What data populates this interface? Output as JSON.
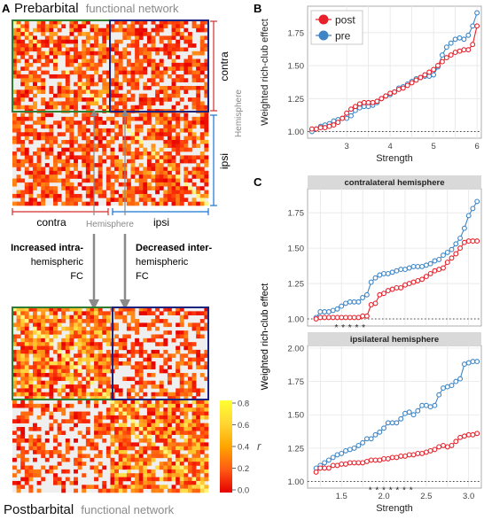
{
  "panel_a": {
    "letter": "A",
    "title_top_bold": "Prebarbital",
    "title_top_light": "functional network",
    "title_bottom_bold": "Postbarbital",
    "title_bottom_light": "functional network",
    "contra_label": "contra",
    "ipsi_label": "ipsi",
    "hemisphere_label": "Hemisphere",
    "left_arrow_text": [
      "Increased intra-",
      "hemispheric",
      "FC"
    ],
    "right_arrow_text": [
      "Decreased inter-",
      "hemispheric",
      "FC"
    ],
    "colorbar": {
      "label": "r",
      "ticks": [
        "0.8",
        "0.6",
        "0.4",
        "0.2",
        "0.0"
      ],
      "colors": [
        "#ffff33",
        "#ffd633",
        "#ffa500",
        "#ff6a1a",
        "#ff2a00",
        "#e60000"
      ]
    },
    "matrix_colors": {
      "low": "#e60000",
      "mid": "#ff8c1a",
      "high": "#ffff66",
      "empty": "#eeeeee",
      "intra_box": "#2e7d32",
      "inter_box": "#1a237e"
    }
  },
  "chart_data": [
    {
      "panel": "B",
      "type": "line",
      "title": "",
      "xlabel": "Strength",
      "ylabel": "Weighted rich-club effect",
      "xlim": [
        2.1,
        6.1
      ],
      "ylim": [
        0.95,
        1.95
      ],
      "xticks": [
        "3",
        "4",
        "5",
        "6"
      ],
      "yticks": [
        "1.00",
        "1.25",
        "1.50",
        "1.75"
      ],
      "reference_line": 1.0,
      "legend_position": "top-left",
      "series": [
        {
          "name": "post",
          "color": "#e8202a",
          "x": [
            2.2,
            2.3,
            2.4,
            2.5,
            2.6,
            2.7,
            2.8,
            2.9,
            3.0,
            3.1,
            3.2,
            3.3,
            3.4,
            3.5,
            3.6,
            3.7,
            3.8,
            3.9,
            4.0,
            4.1,
            4.2,
            4.3,
            4.4,
            4.5,
            4.6,
            4.7,
            4.8,
            4.9,
            5.0,
            5.1,
            5.2,
            5.3,
            5.4,
            5.5,
            5.6,
            5.7,
            5.8,
            5.9,
            6.0
          ],
          "y": [
            1.02,
            1.02,
            1.03,
            1.03,
            1.04,
            1.05,
            1.07,
            1.1,
            1.14,
            1.17,
            1.19,
            1.21,
            1.22,
            1.22,
            1.22,
            1.23,
            1.25,
            1.27,
            1.29,
            1.3,
            1.32,
            1.33,
            1.35,
            1.37,
            1.39,
            1.41,
            1.43,
            1.45,
            1.47,
            1.5,
            1.53,
            1.56,
            1.58,
            1.6,
            1.61,
            1.62,
            1.62,
            1.66,
            1.8
          ]
        },
        {
          "name": "pre",
          "color": "#3d85c6",
          "x": [
            2.2,
            2.3,
            2.4,
            2.5,
            2.6,
            2.7,
            2.8,
            2.9,
            3.0,
            3.1,
            3.2,
            3.3,
            3.4,
            3.5,
            3.6,
            3.7,
            3.8,
            3.9,
            4.0,
            4.1,
            4.2,
            4.3,
            4.4,
            4.5,
            4.6,
            4.7,
            4.8,
            4.9,
            5.0,
            5.1,
            5.2,
            5.3,
            5.4,
            5.5,
            5.6,
            5.7,
            5.8,
            5.9,
            6.0
          ],
          "y": [
            1.0,
            1.02,
            1.04,
            1.05,
            1.06,
            1.08,
            1.09,
            1.1,
            1.1,
            1.12,
            1.16,
            1.18,
            1.19,
            1.19,
            1.2,
            1.22,
            1.25,
            1.27,
            1.28,
            1.3,
            1.33,
            1.34,
            1.36,
            1.38,
            1.4,
            1.41,
            1.42,
            1.42,
            1.43,
            1.49,
            1.58,
            1.64,
            1.67,
            1.7,
            1.71,
            1.7,
            1.73,
            1.8,
            1.9
          ]
        }
      ]
    },
    {
      "panel": "C",
      "type": "line",
      "title": "contralateral hemisphere",
      "xlabel": "",
      "ylabel": "Weighted rich-club effect",
      "xlim": [
        1.1,
        3.15
      ],
      "ylim": [
        0.95,
        1.92
      ],
      "xticks": [],
      "yticks": [
        "1.00",
        "1.25",
        "1.50",
        "1.75"
      ],
      "reference_line": 1.0,
      "significance_marks": "* * * * *",
      "sig_x": [
        1.45,
        1.48,
        1.52,
        1.56,
        1.6
      ],
      "series": [
        {
          "name": "post",
          "color": "#e8202a",
          "x": [
            1.2,
            1.25,
            1.3,
            1.35,
            1.4,
            1.45,
            1.5,
            1.55,
            1.6,
            1.65,
            1.7,
            1.75,
            1.8,
            1.85,
            1.9,
            1.95,
            2.0,
            2.05,
            2.1,
            2.15,
            2.2,
            2.25,
            2.3,
            2.35,
            2.4,
            2.45,
            2.5,
            2.55,
            2.6,
            2.65,
            2.7,
            2.75,
            2.8,
            2.85,
            2.9,
            2.95,
            3.0,
            3.05,
            3.1
          ],
          "y": [
            1.0,
            1.01,
            1.01,
            1.01,
            1.01,
            1.01,
            1.01,
            1.01,
            1.01,
            1.01,
            1.01,
            1.02,
            1.02,
            1.1,
            1.11,
            1.17,
            1.18,
            1.2,
            1.21,
            1.22,
            1.22,
            1.24,
            1.25,
            1.26,
            1.27,
            1.28,
            1.3,
            1.32,
            1.34,
            1.35,
            1.36,
            1.4,
            1.43,
            1.46,
            1.5,
            1.54,
            1.55,
            1.55,
            1.55
          ]
        },
        {
          "name": "pre",
          "color": "#3d85c6",
          "x": [
            1.2,
            1.25,
            1.3,
            1.35,
            1.4,
            1.45,
            1.5,
            1.55,
            1.6,
            1.65,
            1.7,
            1.75,
            1.8,
            1.85,
            1.9,
            1.95,
            2.0,
            2.05,
            2.1,
            2.15,
            2.2,
            2.25,
            2.3,
            2.35,
            2.4,
            2.45,
            2.5,
            2.55,
            2.6,
            2.65,
            2.7,
            2.75,
            2.8,
            2.85,
            2.9,
            2.95,
            3.0,
            3.05,
            3.1
          ],
          "y": [
            1.01,
            1.05,
            1.05,
            1.05,
            1.06,
            1.07,
            1.09,
            1.11,
            1.12,
            1.12,
            1.12,
            1.15,
            1.17,
            1.26,
            1.29,
            1.31,
            1.32,
            1.32,
            1.33,
            1.34,
            1.35,
            1.35,
            1.36,
            1.37,
            1.37,
            1.37,
            1.38,
            1.39,
            1.41,
            1.42,
            1.45,
            1.47,
            1.49,
            1.53,
            1.57,
            1.64,
            1.73,
            1.78,
            1.83
          ]
        }
      ]
    },
    {
      "panel": "C",
      "type": "line",
      "title": "ipsilateral hemisphere",
      "xlabel": "Strength",
      "ylabel": "Weighted rich-club effect",
      "xlim": [
        1.1,
        3.15
      ],
      "ylim": [
        0.95,
        2.02
      ],
      "xticks": [
        "1.5",
        "2.0",
        "2.5",
        "3.0"
      ],
      "yticks": [
        "1.00",
        "1.25",
        "1.50",
        "1.75",
        "2.00"
      ],
      "reference_line": 1.0,
      "significance_marks": "* * * * * * *",
      "sig_x": [
        1.85,
        1.95,
        2.05,
        2.15,
        2.25,
        2.35,
        2.45
      ],
      "series": [
        {
          "name": "post",
          "color": "#e8202a",
          "x": [
            1.2,
            1.25,
            1.3,
            1.35,
            1.4,
            1.45,
            1.5,
            1.55,
            1.6,
            1.65,
            1.7,
            1.75,
            1.8,
            1.85,
            1.9,
            1.95,
            2.0,
            2.05,
            2.1,
            2.15,
            2.2,
            2.25,
            2.3,
            2.35,
            2.4,
            2.45,
            2.5,
            2.55,
            2.6,
            2.65,
            2.7,
            2.75,
            2.8,
            2.85,
            2.9,
            2.95,
            3.0,
            3.05,
            3.1
          ],
          "y": [
            1.07,
            1.1,
            1.1,
            1.1,
            1.12,
            1.12,
            1.13,
            1.13,
            1.14,
            1.14,
            1.14,
            1.14,
            1.15,
            1.16,
            1.16,
            1.16,
            1.17,
            1.17,
            1.18,
            1.18,
            1.19,
            1.19,
            1.2,
            1.2,
            1.21,
            1.21,
            1.22,
            1.23,
            1.24,
            1.26,
            1.27,
            1.26,
            1.27,
            1.3,
            1.33,
            1.34,
            1.35,
            1.35,
            1.36
          ]
        },
        {
          "name": "pre",
          "color": "#3d85c6",
          "x": [
            1.2,
            1.25,
            1.3,
            1.35,
            1.4,
            1.45,
            1.5,
            1.55,
            1.6,
            1.65,
            1.7,
            1.75,
            1.8,
            1.85,
            1.9,
            1.95,
            2.0,
            2.05,
            2.1,
            2.15,
            2.2,
            2.25,
            2.3,
            2.35,
            2.4,
            2.45,
            2.5,
            2.55,
            2.6,
            2.65,
            2.7,
            2.75,
            2.8,
            2.85,
            2.9,
            2.95,
            3.0,
            3.05,
            3.1
          ],
          "y": [
            1.1,
            1.12,
            1.14,
            1.16,
            1.18,
            1.2,
            1.21,
            1.23,
            1.24,
            1.25,
            1.27,
            1.29,
            1.32,
            1.32,
            1.35,
            1.37,
            1.4,
            1.44,
            1.44,
            1.44,
            1.47,
            1.51,
            1.52,
            1.5,
            1.53,
            1.57,
            1.57,
            1.56,
            1.57,
            1.65,
            1.7,
            1.71,
            1.72,
            1.75,
            1.77,
            1.88,
            1.89,
            1.9,
            1.9
          ]
        }
      ]
    }
  ],
  "panel_b": {
    "letter": "B"
  },
  "panel_c": {
    "letter": "C"
  }
}
